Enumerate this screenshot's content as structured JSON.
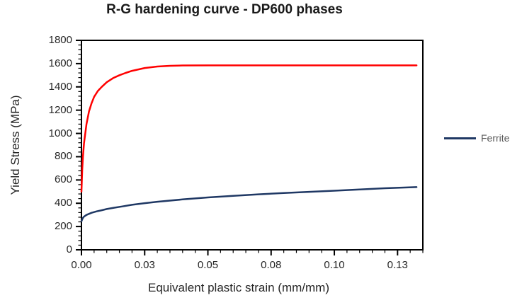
{
  "chart_data": {
    "type": "line",
    "title": "R-G hardening curve - DP600 phases",
    "xlabel": "Equivalent plastic strain (mm/mm)",
    "ylabel": "Yield Stress (MPa)",
    "xlim": [
      0,
      0.135
    ],
    "ylim": [
      0,
      1800
    ],
    "grid": false,
    "x_ticks": [
      {
        "value": 0,
        "label": "0.00"
      },
      {
        "value": 0.025,
        "label": "0.03"
      },
      {
        "value": 0.05,
        "label": "0.05"
      },
      {
        "value": 0.075,
        "label": "0.08"
      },
      {
        "value": 0.1,
        "label": "0.10"
      },
      {
        "value": 0.125,
        "label": "0.13"
      }
    ],
    "y_ticks": [
      {
        "value": 0,
        "label": "0"
      },
      {
        "value": 200,
        "label": "200"
      },
      {
        "value": 400,
        "label": "400"
      },
      {
        "value": 600,
        "label": "600"
      },
      {
        "value": 800,
        "label": "800"
      },
      {
        "value": 1000,
        "label": "1000"
      },
      {
        "value": 1200,
        "label": "1200"
      },
      {
        "value": 1400,
        "label": "1400"
      },
      {
        "value": 1600,
        "label": "1600"
      },
      {
        "value": 1800,
        "label": "1800"
      }
    ],
    "x_minor_step": 0.005,
    "y_minor_step": 40,
    "legend_position": "right",
    "legend": [
      {
        "label": "Ferrite",
        "color": "#1f3864"
      }
    ],
    "series": [
      {
        "name": "",
        "color": "#ff0000",
        "x": [
          0,
          0.0003,
          0.0006,
          0.001,
          0.0015,
          0.002,
          0.003,
          0.004,
          0.005,
          0.0065,
          0.008,
          0.01,
          0.0125,
          0.015,
          0.0175,
          0.02,
          0.025,
          0.03,
          0.035,
          0.04,
          0.05,
          0.07,
          0.09,
          0.11,
          0.1325
        ],
        "y": [
          500,
          690,
          800,
          915,
          1000,
          1080,
          1190,
          1260,
          1315,
          1365,
          1400,
          1440,
          1475,
          1500,
          1520,
          1538,
          1562,
          1575,
          1581,
          1584,
          1585,
          1585,
          1585,
          1585,
          1585
        ]
      },
      {
        "name": "Ferrite",
        "color": "#1f3864",
        "x": [
          0,
          0.0005,
          0.001,
          0.002,
          0.004,
          0.006,
          0.008,
          0.01,
          0.013,
          0.016,
          0.02,
          0.025,
          0.03,
          0.04,
          0.05,
          0.06,
          0.07,
          0.08,
          0.09,
          0.1,
          0.11,
          0.12,
          0.1325
        ],
        "y": [
          245,
          272,
          285,
          300,
          318,
          330,
          340,
          350,
          362,
          372,
          387,
          401,
          413,
          433,
          450,
          464,
          477,
          488,
          498,
          508,
          518,
          529,
          539
        ]
      }
    ],
    "axis_color": "#000000",
    "text_colors": {
      "title": "#1a1a1a",
      "tick_labels": "#262626",
      "axis_titles": "#262626",
      "legend": "#595959"
    }
  }
}
